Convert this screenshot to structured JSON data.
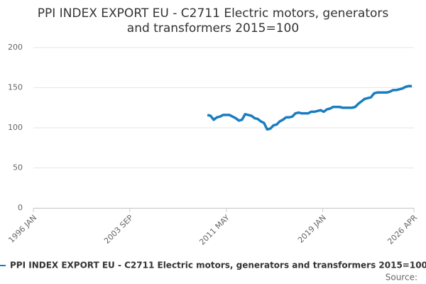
{
  "chart_data": {
    "type": "line",
    "title": [
      "PPI INDEX EXPORT EU - C2711 Electric motors, generators",
      "and transformers 2015=100"
    ],
    "source": "Source:",
    "x": [
      "2009 NOV",
      "2010 FEB",
      "2010 MAY",
      "2010 AUG",
      "2010 NOV",
      "2011 FEB",
      "2011 MAY",
      "2011 AUG",
      "2011 NOV",
      "2012 FEB",
      "2012 MAY",
      "2012 AUG",
      "2012 NOV",
      "2013 FEB",
      "2013 MAY",
      "2013 AUG",
      "2013 NOV",
      "2014 FEB",
      "2014 MAY",
      "2014 AUG",
      "2014 NOV",
      "2015 FEB",
      "2015 MAY",
      "2015 AUG",
      "2015 NOV",
      "2016 FEB",
      "2016 MAY",
      "2016 AUG",
      "2016 NOV",
      "2017 FEB",
      "2017 MAY",
      "2017 AUG",
      "2017 NOV",
      "2018 FEB",
      "2018 MAY",
      "2018 AUG",
      "2018 NOV",
      "2019 FEB",
      "2019 MAY",
      "2019 AUG",
      "2019 NOV",
      "2020 FEB",
      "2020 MAY",
      "2020 AUG",
      "2020 NOV",
      "2021 FEB",
      "2021 MAY",
      "2021 AUG",
      "2021 NOV",
      "2022 FEB",
      "2022 MAY",
      "2022 AUG",
      "2022 NOV",
      "2023 FEB",
      "2023 MAY",
      "2023 AUG",
      "2023 NOV",
      "2024 FEB",
      "2024 MAY",
      "2024 AUG",
      "2024 NOV",
      "2025 FEB",
      "2025 MAY",
      "2025 AUG",
      "2025 NOV",
      "2026 FEB"
    ],
    "series": [
      {
        "name": "PPI INDEX EXPORT EU - C2711 Electric motors, generators and transformers 2015=100",
        "color": "#1a7dc0",
        "values": [
          116,
          115,
          110,
          113,
          114,
          116,
          116,
          116,
          114,
          112,
          109,
          110,
          117,
          116,
          115,
          112,
          111,
          108,
          106,
          98,
          99,
          103,
          104,
          108,
          110,
          113,
          113,
          114,
          118,
          119,
          118,
          118,
          118,
          120,
          120,
          121,
          122,
          120,
          123,
          124,
          126,
          126,
          126,
          125,
          125,
          125,
          125,
          126,
          130,
          133,
          136,
          137,
          138,
          143,
          144,
          144,
          144,
          144,
          145,
          147,
          147,
          148,
          149,
          151,
          152,
          152
        ]
      }
    ],
    "xlim": [
      "1996 JAN",
      "2026 APR"
    ],
    "xticks": [
      "1996 JAN",
      "2003 SEP",
      "2011 MAY",
      "2019 JAN",
      "2026 APR"
    ],
    "ylim": [
      0,
      200
    ],
    "yticks": [
      0,
      50,
      100,
      150,
      200
    ],
    "grid": true
  }
}
